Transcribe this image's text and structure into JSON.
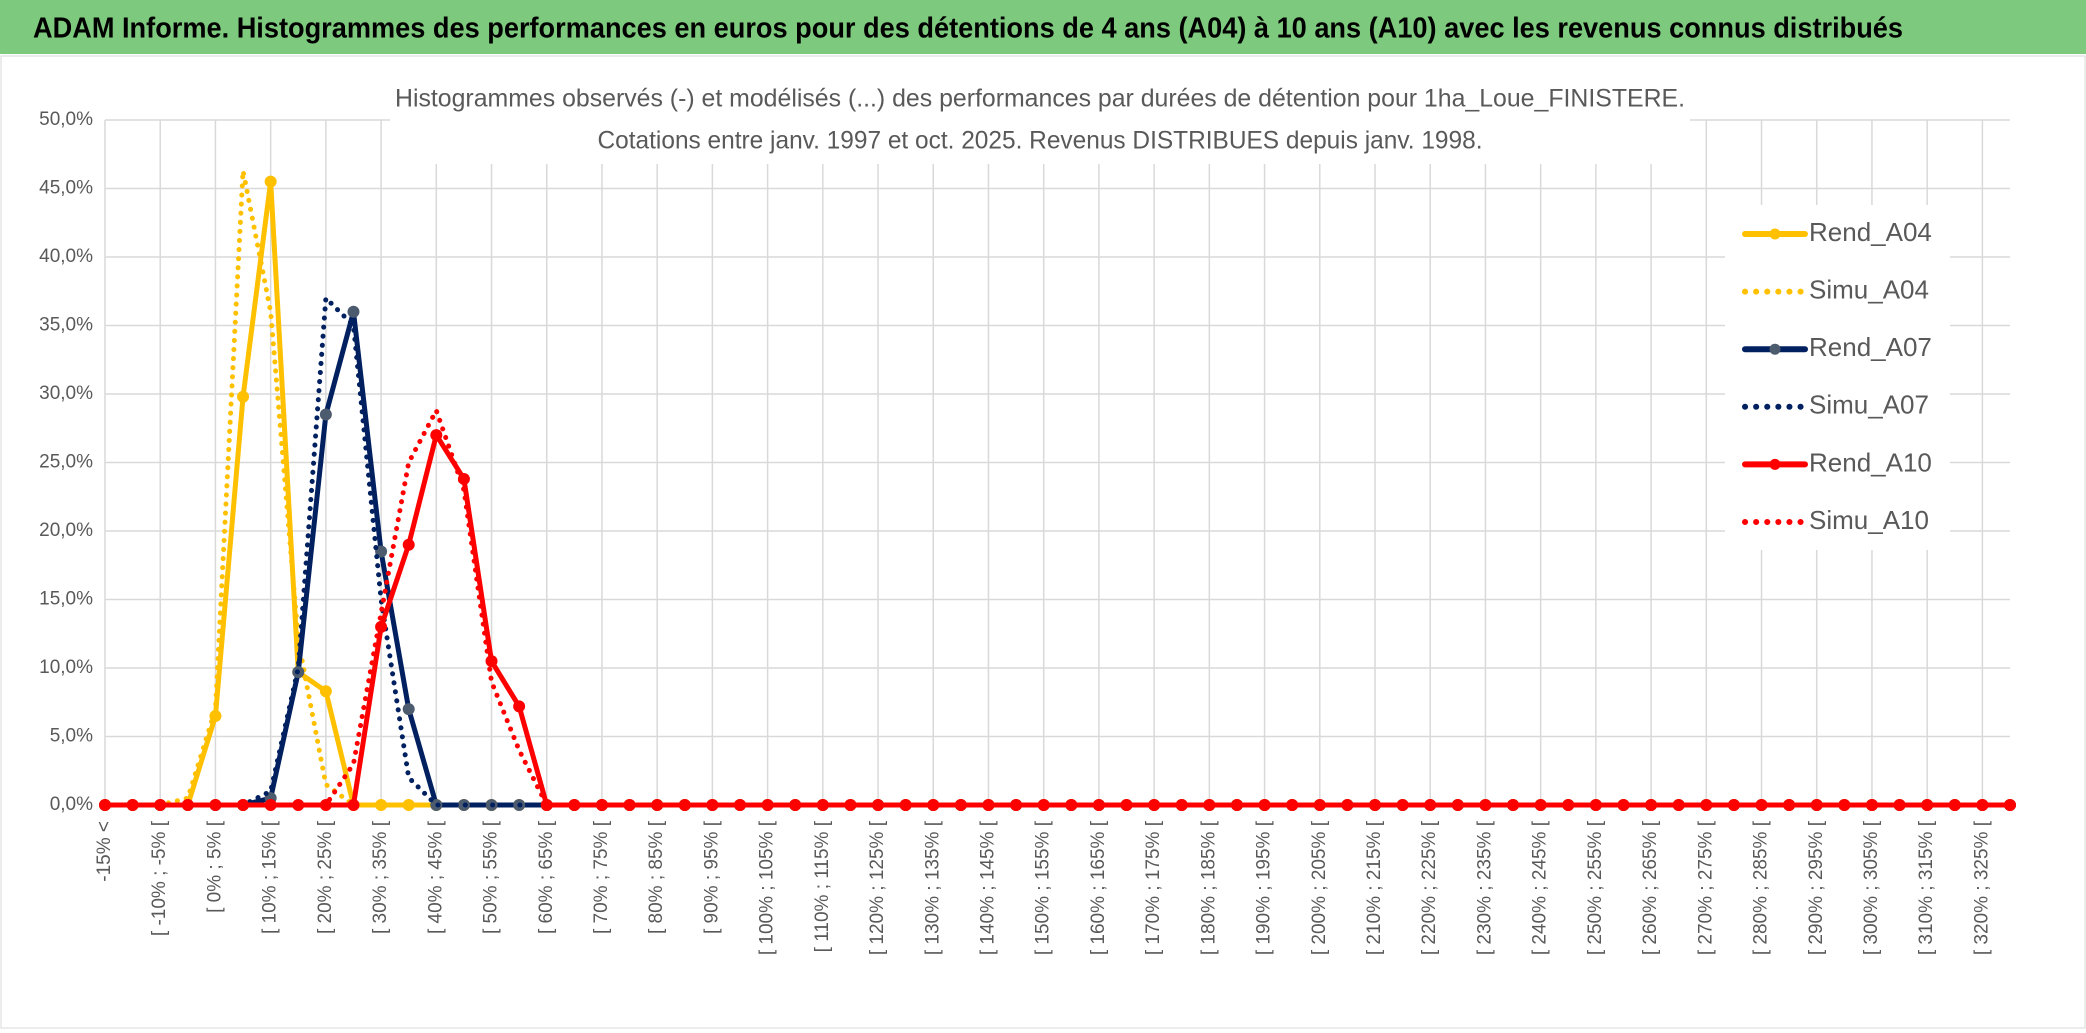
{
  "header": {
    "title": "ADAM Informe. Histogrammes des performances en euros pour des détentions de 4 ans (A04) à 10 ans (A10) avec les revenus connus distribués"
  },
  "chart_data": {
    "type": "line",
    "title": "Histogrammes observés (-) et modélisés (...) des performances par durées de détention pour 1ha_Loue_FINISTERE.",
    "subtitle": "Cotations entre janv. 1997 et oct. 2025. Revenus DISTRIBUES depuis janv. 1998.",
    "categories": [
      "-15% <",
      null,
      "[ -10% ; -5% [",
      null,
      "[ 0% ; 5% [",
      null,
      "[ 10% ; 15% [",
      null,
      "[ 20% ; 25% [",
      null,
      "[ 30% ; 35% [",
      null,
      "[ 40% ; 45% [",
      null,
      "[ 50% ; 55% [",
      null,
      "[ 60% ; 65% [",
      null,
      "[ 70% ; 75% [",
      null,
      "[ 80% ; 85% [",
      null,
      "[ 90% ; 95% [",
      null,
      "[ 100% ; 105% [",
      null,
      "[ 110% ; 115% [",
      null,
      "[ 120% ; 125% [",
      null,
      "[ 130% ; 135% [",
      null,
      "[ 140% ; 145% [",
      null,
      "[ 150% ; 155% [",
      null,
      "[ 160% ; 165% [",
      null,
      "[ 170% ; 175% [",
      null,
      "[ 180% ; 185% [",
      null,
      "[ 190% ; 195% [",
      null,
      "[ 200% ; 205% [",
      null,
      "[ 210% ; 215% [",
      null,
      "[ 220% ; 225% [",
      null,
      "[ 230% ; 235% [",
      null,
      "[ 240% ; 245% [",
      null,
      "[ 250% ; 255% [",
      null,
      "[ 260% ; 265% [",
      null,
      "[ 270% ; 275% [",
      null,
      "[ 280% ; 285% [",
      null,
      "[ 290% ; 295% [",
      null,
      "[ 300% ; 305% [",
      null,
      "[ 310% ; 315% [",
      null,
      "[ 320% ; 325% [",
      null
    ],
    "series": [
      {
        "name": "Rend_A04",
        "color": "#ffc000",
        "marker_color": "#ffc000",
        "style": "solid",
        "values": [
          0,
          0,
          0,
          0,
          6.5,
          29.8,
          45.5,
          9.7,
          8.3,
          0,
          0,
          0,
          0,
          0,
          0,
          0,
          0,
          0,
          0,
          0,
          0,
          0,
          0,
          0,
          0,
          0,
          0,
          0,
          0,
          0,
          0,
          0,
          0,
          0,
          0,
          0,
          0,
          0,
          0,
          0,
          0,
          0,
          0,
          0,
          0,
          0,
          0,
          0,
          0,
          0,
          0,
          0,
          0,
          0,
          0,
          0,
          0,
          0,
          0,
          0,
          0,
          0,
          0,
          0,
          0,
          0,
          0,
          0,
          0,
          0
        ]
      },
      {
        "name": "Simu_A04",
        "color": "#ffc000",
        "style": "dotted",
        "values": [
          0,
          0,
          0,
          0.5,
          7,
          46.3,
          36,
          12,
          1.5,
          0,
          0,
          0,
          0,
          0,
          0,
          0,
          0,
          0,
          0,
          0,
          0,
          0,
          0,
          0,
          0,
          0,
          0,
          0,
          0,
          0,
          0,
          0,
          0,
          0,
          0,
          0,
          0,
          0,
          0,
          0,
          0,
          0,
          0,
          0,
          0,
          0,
          0,
          0,
          0,
          0,
          0,
          0,
          0,
          0,
          0,
          0,
          0,
          0,
          0,
          0,
          0,
          0,
          0,
          0,
          0,
          0,
          0,
          0,
          0,
          0
        ]
      },
      {
        "name": "Rend_A07",
        "color": "#002060",
        "marker_color": "#4d5b6e",
        "style": "solid",
        "values": [
          0,
          0,
          0,
          0,
          0,
          0,
          0.5,
          9.7,
          28.5,
          36,
          18.5,
          7,
          0,
          0,
          0,
          0,
          0,
          0,
          0,
          0,
          0,
          0,
          0,
          0,
          0,
          0,
          0,
          0,
          0,
          0,
          0,
          0,
          0,
          0,
          0,
          0,
          0,
          0,
          0,
          0,
          0,
          0,
          0,
          0,
          0,
          0,
          0,
          0,
          0,
          0,
          0,
          0,
          0,
          0,
          0,
          0,
          0,
          0,
          0,
          0,
          0,
          0,
          0,
          0,
          0,
          0,
          0,
          0,
          0,
          0
        ]
      },
      {
        "name": "Simu_A07",
        "color": "#002060",
        "style": "dotted",
        "values": [
          0,
          0,
          0,
          0,
          0,
          0,
          1,
          10,
          37,
          35,
          15,
          2,
          0,
          0,
          0,
          0,
          0,
          0,
          0,
          0,
          0,
          0,
          0,
          0,
          0,
          0,
          0,
          0,
          0,
          0,
          0,
          0,
          0,
          0,
          0,
          0,
          0,
          0,
          0,
          0,
          0,
          0,
          0,
          0,
          0,
          0,
          0,
          0,
          0,
          0,
          0,
          0,
          0,
          0,
          0,
          0,
          0,
          0,
          0,
          0,
          0,
          0,
          0,
          0,
          0,
          0,
          0,
          0,
          0,
          0
        ]
      },
      {
        "name": "Rend_A10",
        "color": "#ff0000",
        "marker_color": "#ff0000",
        "style": "solid",
        "values": [
          0,
          0,
          0,
          0,
          0,
          0,
          0,
          0,
          0,
          0,
          13,
          19,
          27,
          23.8,
          10.5,
          7.2,
          0,
          0,
          0,
          0,
          0,
          0,
          0,
          0,
          0,
          0,
          0,
          0,
          0,
          0,
          0,
          0,
          0,
          0,
          0,
          0,
          0,
          0,
          0,
          0,
          0,
          0,
          0,
          0,
          0,
          0,
          0,
          0,
          0,
          0,
          0,
          0,
          0,
          0,
          0,
          0,
          0,
          0,
          0,
          0,
          0,
          0,
          0,
          0,
          0,
          0,
          0,
          0,
          0,
          0
        ]
      },
      {
        "name": "Simu_A10",
        "color": "#ff0000",
        "style": "dotted",
        "values": [
          0,
          0,
          0,
          0,
          0,
          0,
          0,
          0,
          0,
          3,
          14,
          25,
          28.8,
          23,
          9,
          4,
          0,
          0,
          0,
          0,
          0,
          0,
          0,
          0,
          0,
          0,
          0,
          0,
          0,
          0,
          0,
          0,
          0,
          0,
          0,
          0,
          0,
          0,
          0,
          0,
          0,
          0,
          0,
          0,
          0,
          0,
          0,
          0,
          0,
          0,
          0,
          0,
          0,
          0,
          0,
          0,
          0,
          0,
          0,
          0,
          0,
          0,
          0,
          0,
          0,
          0,
          0,
          0,
          0,
          0
        ]
      }
    ],
    "ylim": [
      0,
      50
    ],
    "yticks": [
      {
        "value": 0,
        "label": "0,0%"
      },
      {
        "value": 5,
        "label": "5,0%"
      },
      {
        "value": 10,
        "label": "10,0%"
      },
      {
        "value": 15,
        "label": "15,0%"
      },
      {
        "value": 20,
        "label": "20,0%"
      },
      {
        "value": 25,
        "label": "25,0%"
      },
      {
        "value": 30,
        "label": "30,0%"
      },
      {
        "value": 35,
        "label": "35,0%"
      },
      {
        "value": 40,
        "label": "40,0%"
      },
      {
        "value": 45,
        "label": "45,0%"
      },
      {
        "value": 50,
        "label": "50,0%"
      }
    ],
    "grid": true,
    "legend": "right"
  }
}
